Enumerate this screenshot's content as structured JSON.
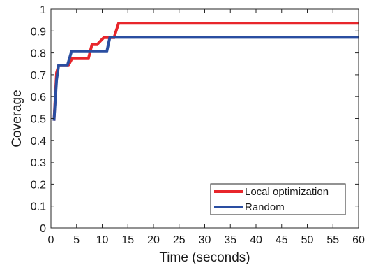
{
  "chart_data": {
    "type": "line",
    "title": "",
    "xlabel": "Time (seconds)",
    "ylabel": "Coverage",
    "xlim": [
      0,
      60
    ],
    "ylim": [
      0,
      1
    ],
    "xticks": [
      0,
      5,
      10,
      15,
      20,
      25,
      30,
      35,
      40,
      45,
      50,
      55,
      60
    ],
    "yticks": [
      0,
      0.1,
      0.2,
      0.3,
      0.4,
      0.5,
      0.6,
      0.7,
      0.8,
      0.9,
      1
    ],
    "xtick_labels": [
      "0",
      "5",
      "10",
      "15",
      "20",
      "25",
      "30",
      "35",
      "40",
      "45",
      "50",
      "55",
      "60"
    ],
    "ytick_labels": [
      "0",
      "0.1",
      "0.2",
      "0.3",
      "0.4",
      "0.5",
      "0.6",
      "0.7",
      "0.8",
      "0.9",
      "1"
    ],
    "grid": false,
    "legend_position": "bottom-right",
    "series": [
      {
        "name": "Local optimization",
        "color": "#e8262b",
        "x": [
          0.6,
          1.1,
          1.5,
          3.4,
          4.1,
          7.3,
          8.0,
          9.0,
          10.3,
          12.3,
          13.2,
          60
        ],
        "y": [
          0.49,
          0.71,
          0.742,
          0.742,
          0.774,
          0.774,
          0.838,
          0.838,
          0.87,
          0.87,
          0.935,
          0.935
        ]
      },
      {
        "name": "Random",
        "color": "#2a4ea1",
        "x": [
          0.6,
          1.1,
          1.5,
          3.2,
          4.0,
          10.9,
          11.5,
          60
        ],
        "y": [
          0.49,
          0.677,
          0.742,
          0.742,
          0.806,
          0.806,
          0.871,
          0.871
        ]
      }
    ]
  }
}
